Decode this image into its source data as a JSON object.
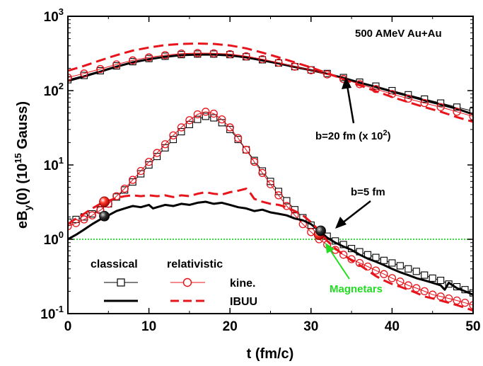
{
  "chart_data": {
    "type": "line",
    "title": "500 AMeV Au+Au",
    "xlabel": "t (fm/c)",
    "ylabel": "eBy(0) (10^15 Gauss)",
    "ylabel_parts": {
      "main": "eB",
      "sub": "y",
      "rest": "(0) (10",
      "sup": "15",
      "tail": " Gauss)"
    },
    "xlim": [
      0,
      50
    ],
    "ylim": [
      0.1,
      1000
    ],
    "yscale": "log",
    "x_ticks": [
      0,
      10,
      20,
      30,
      40,
      50
    ],
    "y_tick_labels": [
      {
        "value": 0.1,
        "base": "10",
        "exp": "-1"
      },
      {
        "value": 1,
        "base": "10",
        "exp": "0"
      },
      {
        "value": 10,
        "base": "10",
        "exp": "1"
      },
      {
        "value": 100,
        "base": "10",
        "exp": "2"
      },
      {
        "value": 1000,
        "base": "10",
        "exp": "3"
      }
    ],
    "grid": false,
    "reference_line": {
      "y": 1.0,
      "color": "#00cc00"
    },
    "colors": {
      "classical": "#000000",
      "relativistic": "#e8141b",
      "magnetars": "#22dd22"
    },
    "series": [
      {
        "key": "b20_classical_kine",
        "style": "open-square",
        "x": [
          0,
          2,
          4,
          6,
          8,
          10,
          12,
          14,
          16,
          18,
          20,
          22,
          24,
          26,
          28,
          30,
          32,
          34,
          36,
          38,
          40,
          42,
          44,
          46,
          48,
          50
        ],
        "values": [
          140,
          160,
          185,
          215,
          245,
          270,
          290,
          305,
          310,
          310,
          305,
          285,
          260,
          235,
          210,
          190,
          170,
          150,
          130,
          115,
          100,
          88,
          77,
          68,
          60,
          53
        ]
      },
      {
        "key": "b20_classical_ibuu",
        "style": "solid",
        "x": [
          0,
          2,
          4,
          6,
          8,
          10,
          12,
          14,
          16,
          18,
          20,
          22,
          24,
          26,
          28,
          30,
          32,
          34,
          36,
          38,
          40,
          42,
          44,
          46,
          48,
          50
        ],
        "values": [
          135,
          155,
          180,
          210,
          240,
          265,
          285,
          300,
          305,
          305,
          298,
          280,
          255,
          232,
          208,
          188,
          168,
          148,
          128,
          112,
          97,
          85,
          74,
          65,
          57,
          48
        ]
      },
      {
        "key": "b20_relativistic_kine",
        "style": "open-circle",
        "x": [
          0,
          2,
          4,
          6,
          8,
          10,
          12,
          14,
          16,
          18,
          20,
          22,
          24,
          26,
          28,
          30,
          32,
          34,
          36,
          38,
          40,
          42,
          44,
          46,
          48,
          50
        ],
        "values": [
          150,
          170,
          195,
          225,
          255,
          280,
          300,
          315,
          320,
          318,
          310,
          290,
          265,
          238,
          210,
          188,
          165,
          143,
          122,
          105,
          90,
          78,
          68,
          60,
          52,
          45
        ]
      },
      {
        "key": "b20_relativistic_ibuu",
        "style": "dashed",
        "x": [
          0,
          2,
          4,
          6,
          8,
          10,
          12,
          14,
          16,
          18,
          20,
          22,
          24,
          26,
          28,
          30,
          32,
          34,
          36,
          38,
          40,
          42,
          44,
          46,
          48,
          50
        ],
        "values": [
          185,
          215,
          255,
          300,
          345,
          380,
          410,
          425,
          430,
          425,
          405,
          370,
          325,
          280,
          240,
          205,
          172,
          142,
          118,
          98,
          82,
          70,
          60,
          52,
          44,
          38
        ]
      },
      {
        "key": "b5_classical_kine",
        "style": "open-square",
        "x": [
          0,
          1,
          2,
          3,
          4,
          5,
          6,
          7,
          8,
          9,
          10,
          11,
          12,
          13,
          14,
          15,
          16,
          17,
          18,
          19,
          20,
          21,
          22,
          23,
          24,
          25,
          26,
          27,
          28,
          29,
          30,
          31,
          32,
          33,
          34,
          35,
          36,
          37,
          38,
          39,
          40,
          41,
          42,
          43,
          44,
          45,
          46,
          47,
          48,
          49,
          50
        ],
        "values": [
          1.7,
          1.85,
          2.0,
          2.2,
          2.5,
          3.0,
          3.7,
          4.6,
          5.9,
          7.6,
          10.0,
          13.0,
          17.0,
          22.0,
          28.0,
          35.0,
          41.0,
          45.0,
          43.0,
          37.0,
          30.0,
          22.0,
          16.0,
          11.5,
          8.3,
          6.0,
          4.4,
          3.3,
          2.5,
          1.95,
          1.55,
          1.3,
          1.1,
          0.95,
          0.85,
          0.75,
          0.68,
          0.62,
          0.57,
          0.52,
          0.48,
          0.44,
          0.4,
          0.37,
          0.33,
          0.3,
          0.28,
          0.25,
          0.23,
          0.21,
          0.19
        ]
      },
      {
        "key": "b5_relativistic_kine",
        "style": "open-circle",
        "x": [
          0,
          1,
          2,
          3,
          4,
          5,
          6,
          7,
          8,
          9,
          10,
          11,
          12,
          13,
          14,
          15,
          16,
          17,
          18,
          19,
          20,
          21,
          22,
          23,
          24,
          25,
          26,
          27,
          28,
          29,
          30,
          31,
          32,
          33,
          34,
          35,
          36,
          37,
          38,
          39,
          40,
          41,
          42,
          43,
          44,
          45,
          46,
          47,
          48,
          49,
          50
        ],
        "values": [
          1.5,
          1.65,
          1.85,
          2.1,
          2.45,
          3.0,
          3.8,
          4.8,
          6.3,
          8.3,
          11.0,
          14.5,
          19.0,
          25.0,
          32.0,
          40.0,
          48.0,
          52.0,
          49.0,
          41.0,
          32.0,
          23.0,
          16.0,
          11.0,
          7.8,
          5.5,
          3.9,
          2.8,
          2.1,
          1.6,
          1.25,
          1.0,
          0.85,
          0.72,
          0.62,
          0.54,
          0.48,
          0.43,
          0.38,
          0.34,
          0.3,
          0.27,
          0.24,
          0.22,
          0.2,
          0.18,
          0.17,
          0.16,
          0.15,
          0.14,
          0.13
        ]
      },
      {
        "key": "b5_classical_ibuu",
        "style": "solid",
        "x": [
          0,
          1,
          2,
          3,
          4,
          5,
          6,
          7,
          8,
          9,
          10,
          10.5,
          11,
          12,
          13,
          14,
          15,
          16,
          17,
          18,
          19,
          20,
          21,
          22,
          23,
          24,
          25,
          26,
          27,
          28,
          29,
          30,
          31,
          32,
          33,
          34,
          35,
          36,
          37,
          38,
          39,
          40,
          41,
          42,
          43,
          44,
          45,
          46,
          46.5,
          47,
          48,
          49,
          50
        ],
        "values": [
          1.0,
          1.15,
          1.35,
          1.6,
          1.85,
          2.1,
          2.4,
          2.6,
          2.8,
          2.7,
          2.9,
          2.6,
          2.7,
          2.9,
          2.8,
          3.0,
          2.9,
          3.1,
          3.2,
          3.0,
          3.1,
          2.9,
          2.7,
          2.6,
          2.4,
          2.5,
          2.3,
          2.2,
          2.1,
          1.9,
          1.8,
          1.6,
          1.3,
          1.05,
          0.9,
          0.8,
          0.72,
          0.62,
          0.55,
          0.5,
          0.45,
          0.4,
          0.36,
          0.33,
          0.3,
          0.28,
          0.26,
          0.24,
          0.21,
          0.26,
          0.22,
          0.2,
          0.18
        ]
      },
      {
        "key": "b5_relativistic_ibuu",
        "style": "dashed",
        "x": [
          0,
          1,
          2,
          3,
          4,
          5,
          6,
          7,
          8,
          9,
          10,
          11,
          12,
          13,
          14,
          15,
          16,
          17,
          18,
          19,
          20,
          21,
          22,
          22.5,
          23,
          24,
          25,
          26,
          27,
          28,
          29,
          30,
          31,
          32,
          33,
          34,
          35,
          36,
          37,
          38,
          39,
          40,
          41,
          42,
          43,
          44,
          45,
          46,
          47,
          48,
          49,
          50
        ],
        "values": [
          1.6,
          1.9,
          2.2,
          2.6,
          3.0,
          3.3,
          3.6,
          3.8,
          3.9,
          3.8,
          3.9,
          3.8,
          3.9,
          3.7,
          3.9,
          3.8,
          4.1,
          4.3,
          4.1,
          4.0,
          4.3,
          4.5,
          4.8,
          4.2,
          3.5,
          3.2,
          3.0,
          2.9,
          2.7,
          2.4,
          2.1,
          1.7,
          1.3,
          0.95,
          0.75,
          0.62,
          0.52,
          0.45,
          0.38,
          0.32,
          0.28,
          0.25,
          0.23,
          0.21,
          0.19,
          0.17,
          0.16,
          0.15,
          0.14,
          0.13,
          0.12,
          0.11
        ]
      }
    ],
    "ball_markers": [
      {
        "x": 4.5,
        "y": 3.2,
        "color": "red"
      },
      {
        "x": 4.5,
        "y": 2.05,
        "color": "black"
      },
      {
        "x": 31.0,
        "y": 1.15,
        "color": "red"
      },
      {
        "x": 31.2,
        "y": 1.3,
        "color": "black"
      }
    ],
    "annotations": {
      "b20_label": "b=20 fm (x 10",
      "b20_sup": "2",
      "b20_close": ")",
      "b5_label": "b=5 fm",
      "magnetars": "Magnetars"
    },
    "legend": {
      "classical": "classical",
      "relativistic": "relativistic",
      "kine": "kine.",
      "ibuu": "IBUU"
    }
  }
}
